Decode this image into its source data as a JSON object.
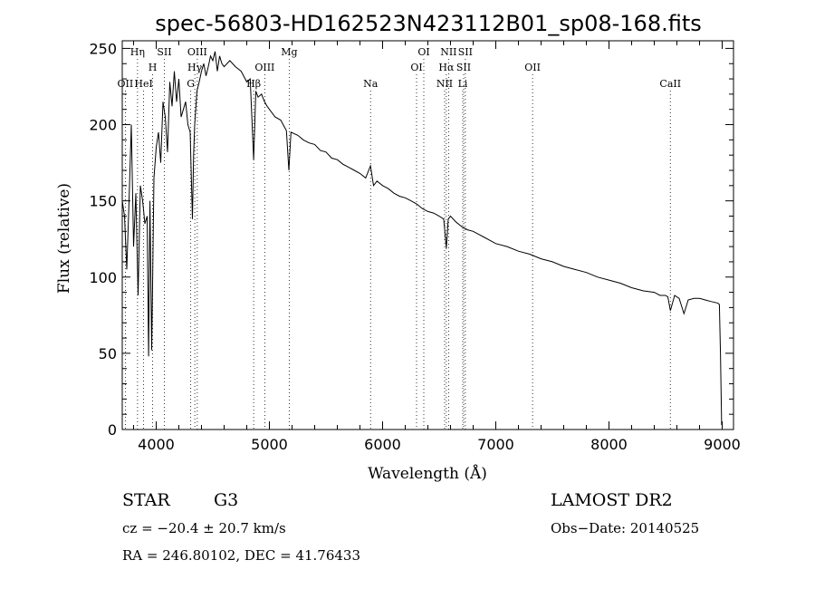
{
  "chart_data": {
    "type": "line",
    "title": "spec-56803-HD162523N423112B01_sp08-168.fits",
    "xlabel": "Wavelength (Å)",
    "ylabel": "Flux (relative)",
    "xlim": [
      3700,
      9100
    ],
    "ylim": [
      0,
      255
    ],
    "xticks": [
      4000,
      5000,
      6000,
      7000,
      8000,
      9000
    ],
    "yticks": [
      0,
      50,
      100,
      150,
      200,
      250
    ],
    "series": [
      {
        "x": [
          3700,
          3720,
          3740,
          3760,
          3780,
          3800,
          3820,
          3840,
          3860,
          3880,
          3900,
          3920,
          3933,
          3945,
          3960,
          3968,
          3980,
          4000,
          4020,
          4040,
          4060,
          4080,
          4100,
          4120,
          4140,
          4160,
          4180,
          4200,
          4220,
          4240,
          4260,
          4280,
          4300,
          4310,
          4320,
          4330,
          4340,
          4360,
          4380,
          4400,
          4420,
          4440,
          4460,
          4480,
          4500,
          4520,
          4540,
          4560,
          4580,
          4600,
          4650,
          4700,
          4750,
          4800,
          4830,
          4861,
          4880,
          4900,
          4930,
          4957,
          4980,
          5000,
          5050,
          5100,
          5150,
          5172,
          5190,
          5250,
          5300,
          5350,
          5400,
          5450,
          5500,
          5550,
          5600,
          5650,
          5700,
          5750,
          5800,
          5850,
          5893,
          5920,
          5950,
          6000,
          6050,
          6100,
          6150,
          6200,
          6250,
          6300,
          6350,
          6400,
          6450,
          6500,
          6540,
          6563,
          6580,
          6600,
          6650,
          6700,
          6750,
          6800,
          6850,
          6900,
          6950,
          7000,
          7100,
          7200,
          7300,
          7400,
          7500,
          7600,
          7700,
          7800,
          7900,
          8000,
          8100,
          8200,
          8300,
          8400,
          8450,
          8498,
          8520,
          8542,
          8580,
          8620,
          8662,
          8700,
          8750,
          8800,
          8850,
          8900,
          8960,
          8975,
          8985,
          8995
        ],
        "y": [
          150,
          140,
          105,
          150,
          200,
          120,
          155,
          88,
          160,
          150,
          135,
          140,
          48,
          150,
          52,
          95,
          165,
          185,
          195,
          175,
          215,
          205,
          182,
          228,
          212,
          235,
          215,
          230,
          205,
          210,
          215,
          200,
          195,
          165,
          138,
          180,
          200,
          222,
          228,
          235,
          240,
          232,
          238,
          245,
          242,
          248,
          235,
          245,
          240,
          238,
          242,
          238,
          235,
          228,
          230,
          177,
          222,
          218,
          220,
          215,
          212,
          210,
          205,
          203,
          196,
          170,
          195,
          193,
          190,
          188,
          187,
          183,
          182,
          178,
          177,
          174,
          172,
          170,
          168,
          165,
          173,
          160,
          163,
          160,
          158,
          155,
          153,
          152,
          150,
          148,
          145,
          143,
          142,
          140,
          138,
          119,
          138,
          140,
          136,
          133,
          131,
          130,
          128,
          126,
          124,
          122,
          120,
          117,
          115,
          112,
          110,
          107,
          105,
          103,
          100,
          98,
          96,
          93,
          91,
          90,
          88,
          88,
          87,
          78,
          88,
          86,
          76,
          85,
          86,
          86,
          85,
          84,
          83,
          82,
          50,
          3
        ]
      }
    ],
    "spectral_lines": [
      {
        "label": "OII",
        "x": 3727,
        "row": 3
      },
      {
        "label": "Hη",
        "x": 3835,
        "row": 1
      },
      {
        "label": "HeI",
        "x": 3889,
        "row": 3
      },
      {
        "label": "H",
        "x": 3968,
        "row": 2
      },
      {
        "label": "SII",
        "x": 4072,
        "row": 1
      },
      {
        "label": "G",
        "x": 4305,
        "row": 3
      },
      {
        "label": "OIII",
        "x": 4363,
        "row": 1
      },
      {
        "label": "Hγ",
        "x": 4341,
        "row": 2
      },
      {
        "label": "Hβ",
        "x": 4861,
        "row": 3
      },
      {
        "label": "OIII",
        "x": 4959,
        "row": 2
      },
      {
        "label": "Mg",
        "x": 5175,
        "row": 1
      },
      {
        "label": "Na",
        "x": 5894,
        "row": 3
      },
      {
        "label": "OI",
        "x": 6300,
        "row": 2
      },
      {
        "label": "OI",
        "x": 6364,
        "row": 1
      },
      {
        "label": "NII",
        "x": 6548,
        "row": 3
      },
      {
        "label": "NII",
        "x": 6583,
        "row": 1
      },
      {
        "label": "Hα",
        "x": 6563,
        "row": 2
      },
      {
        "label": "SII",
        "x": 6716,
        "row": 2
      },
      {
        "label": "SII",
        "x": 6731,
        "row": 1
      },
      {
        "label": "Li",
        "x": 6708,
        "row": 3
      },
      {
        "label": "OII",
        "x": 7325,
        "row": 2
      },
      {
        "label": "CaII",
        "x": 8542,
        "row": 3
      }
    ]
  },
  "info": {
    "object_class": "STAR",
    "subclass": "G3",
    "survey": "LAMOST DR2",
    "redshift_line": "cz = −20.4 ± 20.7 km/s",
    "obs_date_line": "Obs−Date: 20140525",
    "coords_line": "RA = 246.80102, DEC =  41.76433"
  }
}
